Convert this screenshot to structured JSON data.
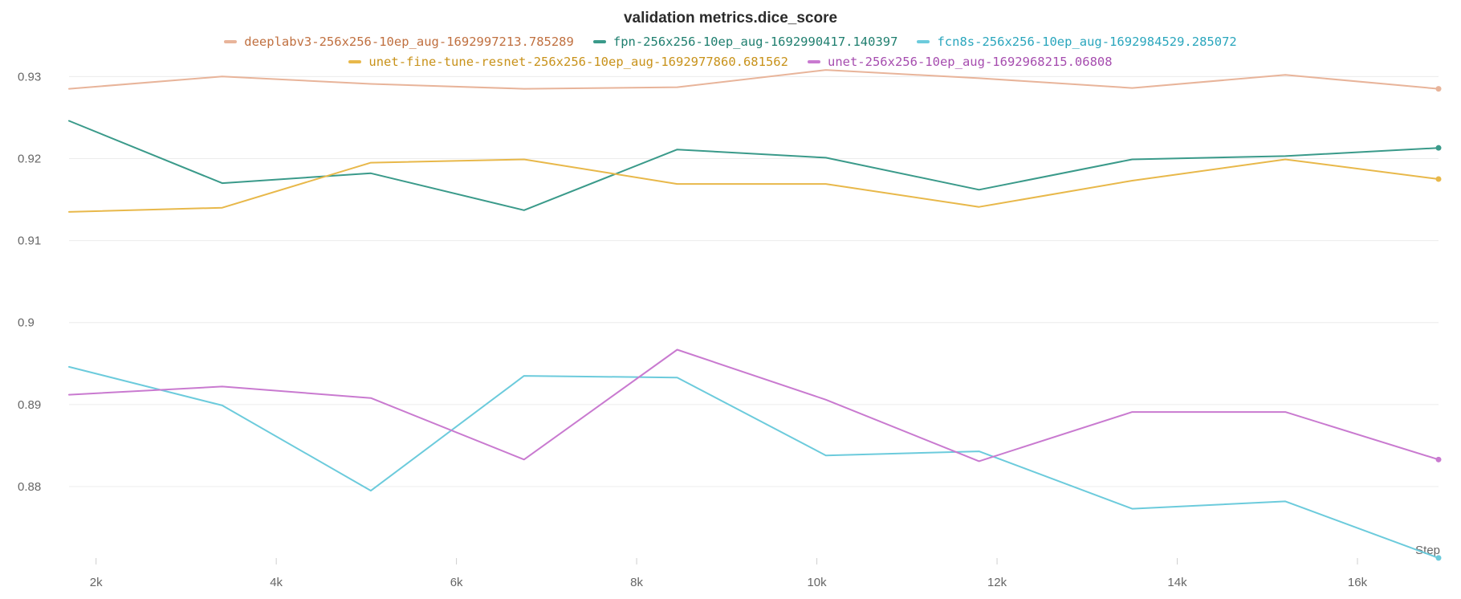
{
  "chart_data": {
    "type": "line",
    "title": "validation metrics.dice_score",
    "xlabel": "Step",
    "ylabel": "",
    "x": [
      1700,
      3400,
      5050,
      6750,
      8450,
      10100,
      11800,
      13500,
      15200,
      16900
    ],
    "xlim": [
      1700,
      16900
    ],
    "ylim": [
      0.8708,
      0.9315
    ],
    "x_ticks": [
      2000,
      4000,
      6000,
      8000,
      10000,
      12000,
      14000,
      16000
    ],
    "x_tick_labels": [
      "2k",
      "4k",
      "6k",
      "8k",
      "10k",
      "12k",
      "14k",
      "16k"
    ],
    "y_ticks": [
      0.88,
      0.89,
      0.9,
      0.91,
      0.92,
      0.93
    ],
    "y_tick_labels": [
      "0.88",
      "0.89",
      "0.9",
      "0.91",
      "0.92",
      "0.93"
    ],
    "grid": true,
    "legend_position": "top-center",
    "series": [
      {
        "name": "deeplabv3-256x256-10ep_aug-1692997213.785289",
        "color": "#e8b49a",
        "text_color": "#c07040",
        "values": [
          0.9285,
          0.93,
          0.9291,
          0.9285,
          0.9287,
          0.9308,
          0.9298,
          0.9286,
          0.9302,
          0.9285
        ]
      },
      {
        "name": "fpn-256x256-10ep_aug-1692990417.140397",
        "color": "#3a9a8a",
        "text_color": "#1f7f6f",
        "values": [
          0.9246,
          0.917,
          0.9182,
          0.9137,
          0.9211,
          0.9201,
          0.9162,
          0.9199,
          0.9203,
          0.9213
        ]
      },
      {
        "name": "fcn8s-256x256-10ep_aug-1692984529.285072",
        "color": "#6ccbdc",
        "text_color": "#2aa6bd",
        "values": [
          0.8946,
          0.8899,
          0.8795,
          0.8935,
          0.8933,
          0.8838,
          0.8843,
          0.8773,
          0.8782,
          0.8713
        ]
      },
      {
        "name": "unet-fine-tune-resnet-256x256-10ep_aug-1692977860.681562",
        "color": "#e8b84a",
        "text_color": "#c8921a",
        "values": [
          0.9135,
          0.914,
          0.9195,
          0.9199,
          0.9169,
          0.9169,
          0.9141,
          0.9173,
          0.9199,
          0.9175
        ]
      },
      {
        "name": "unet-256x256-10ep_aug-1692968215.06808",
        "color": "#c97ad0",
        "text_color": "#a64daf",
        "values": [
          0.8912,
          0.8922,
          0.8908,
          0.8833,
          0.8967,
          0.8906,
          0.8831,
          0.8891,
          0.8891,
          0.8833
        ]
      }
    ]
  }
}
